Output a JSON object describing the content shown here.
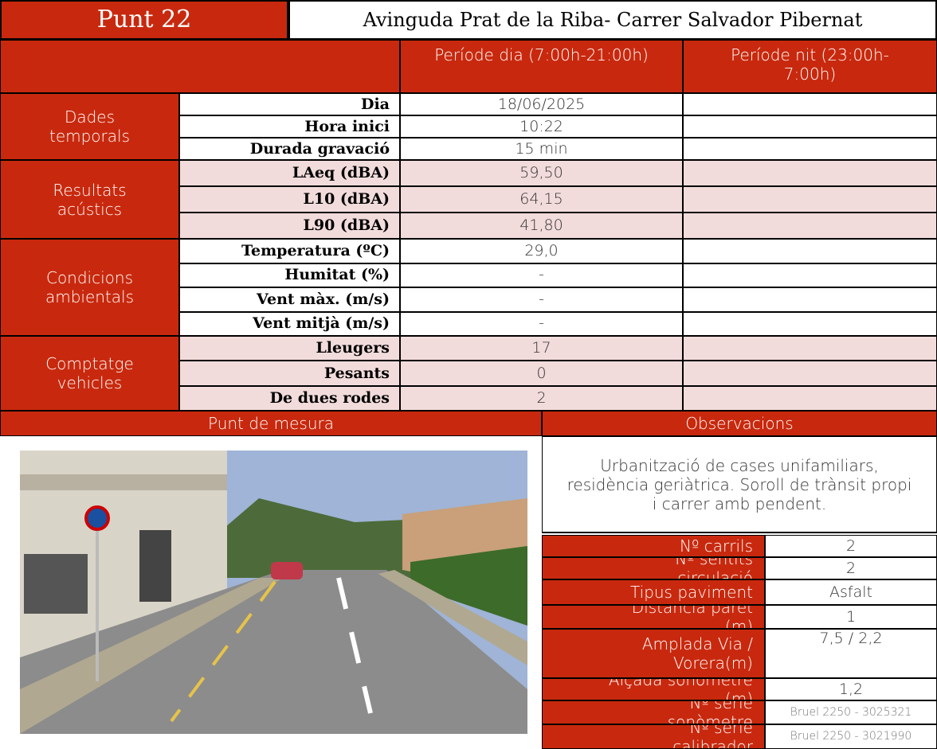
{
  "header": {
    "point": "Punt 22",
    "location": "Avinguda Prat de la Riba- Carrer Salvador Pibernat"
  },
  "periods": {
    "day": "Període dia (7:00h-21:00h)",
    "night": "Període nit (23:00h-7:00h)"
  },
  "sections": [
    {
      "label": "Dades temporals",
      "rows": [
        {
          "label": "Dia",
          "day": "18/06/2025"
        },
        {
          "label": "Hora inici",
          "day": "10:22"
        },
        {
          "label": "Durada gravació",
          "day": "15 min"
        }
      ]
    },
    {
      "label": "Resultats acústics",
      "rows": [
        {
          "label": "LAeq (dBA)",
          "day": "59,50"
        },
        {
          "label": "L10 (dBA)",
          "day": "64,15"
        },
        {
          "label": "L90 (dBA)",
          "day": "41,80"
        }
      ]
    },
    {
      "label": "Condicions ambientals",
      "rows": [
        {
          "label": "Temperatura (ºC)",
          "day": "29,0"
        },
        {
          "label": "Humitat (%)",
          "day": "-"
        },
        {
          "label": "Vent màx. (m/s)",
          "day": "-"
        },
        {
          "label": "Vent mitjà (m/s)",
          "day": "-"
        }
      ]
    },
    {
      "label": "Comptatge vehicles",
      "rows": [
        {
          "label": "Lleugers",
          "day": "17"
        },
        {
          "label": "Pesants",
          "day": "0"
        },
        {
          "label": "De dues rodes",
          "day": "2"
        }
      ]
    }
  ],
  "panels": {
    "photo_title": "Punt de mesura",
    "observations_title": "Observacions",
    "observations": "Urbanització de cases unifamiliars, residència geriàtrica. Soroll de trànsit propi i carrer amb pendent."
  },
  "properties": [
    {
      "label": "Nº carrils",
      "value": "2"
    },
    {
      "label": "Nº sentits circulació",
      "value": "2"
    },
    {
      "label": "Tipus paviment",
      "value": "Asfalt"
    },
    {
      "label": "Distància paret (m)",
      "value": "1"
    },
    {
      "label": "Amplada Via / Vorera(m)",
      "value": "7,5 / 2,2"
    },
    {
      "label": "Alçada sonòmetre (m)",
      "value": "1,2"
    },
    {
      "label": "Nº sèrie sonòmetre",
      "value": "Bruel 2250 - 3025321"
    },
    {
      "label": "Nº sèrie calibrador",
      "value": "Bruel 2250 - 3021990"
    }
  ]
}
